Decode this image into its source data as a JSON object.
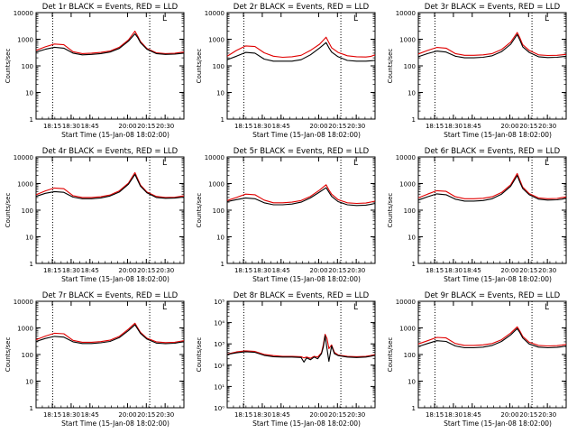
{
  "figure": {
    "legend_colors": {
      "events": "#000000",
      "lld": "#e00000"
    },
    "x_tick_labels": [
      "18:15",
      "18:30",
      "18:45",
      "20:00",
      "20:15",
      "20:30"
    ],
    "x_label": "Start Time (15-Jan-08 18:02:00)",
    "y_label": "Counts/sec",
    "corner_mark": "L"
  },
  "chart_data": [
    {
      "type": "line",
      "title": "Det 1r BLACK = Events, RED = LLD",
      "ylog": true,
      "ylim": [
        1,
        10000
      ],
      "ytick_style": "plain",
      "xlim": [
        0,
        160
      ],
      "x": [
        0,
        10,
        20,
        30,
        40,
        50,
        60,
        70,
        80,
        90,
        100,
        107,
        110,
        113,
        120,
        130,
        140,
        150,
        155,
        160
      ],
      "vlines_dotted": [
        18,
        123
      ],
      "series": [
        {
          "name": "Events",
          "color": "#000000",
          "values": [
            330,
            420,
            500,
            460,
            300,
            260,
            270,
            290,
            330,
            450,
            850,
            1600,
            1150,
            750,
            420,
            290,
            270,
            275,
            290,
            300
          ]
        },
        {
          "name": "LLD",
          "color": "#e00000",
          "values": [
            380,
            520,
            660,
            620,
            340,
            290,
            300,
            320,
            360,
            500,
            950,
            2000,
            1300,
            820,
            450,
            310,
            290,
            295,
            315,
            330
          ]
        }
      ]
    },
    {
      "type": "line",
      "title": "Det 2r BLACK = Events, RED = LLD",
      "ylog": true,
      "ylim": [
        1,
        10000
      ],
      "ytick_style": "plain",
      "xlim": [
        0,
        160
      ],
      "x": [
        0,
        10,
        20,
        30,
        40,
        50,
        60,
        70,
        80,
        90,
        100,
        107,
        110,
        113,
        120,
        130,
        140,
        150,
        155,
        160
      ],
      "vlines_dotted": [
        18,
        123
      ],
      "series": [
        {
          "name": "Events",
          "color": "#000000",
          "values": [
            170,
            230,
            320,
            300,
            180,
            150,
            150,
            150,
            170,
            260,
            470,
            750,
            480,
            330,
            220,
            160,
            150,
            150,
            155,
            160
          ]
        },
        {
          "name": "LLD",
          "color": "#e00000",
          "values": [
            230,
            380,
            560,
            530,
            310,
            230,
            210,
            220,
            250,
            380,
            650,
            1200,
            750,
            480,
            320,
            240,
            220,
            215,
            225,
            260
          ]
        }
      ]
    },
    {
      "type": "line",
      "title": "Det 3r BLACK = Events, RED = LLD",
      "ylog": true,
      "ylim": [
        1,
        10000
      ],
      "ytick_style": "plain",
      "xlim": [
        0,
        160
      ],
      "x": [
        0,
        10,
        20,
        30,
        40,
        50,
        60,
        70,
        80,
        90,
        100,
        107,
        110,
        113,
        120,
        130,
        140,
        150,
        155,
        160
      ],
      "vlines_dotted": [
        18,
        123
      ],
      "series": [
        {
          "name": "Events",
          "color": "#000000",
          "values": [
            220,
            290,
            360,
            330,
            230,
            200,
            200,
            210,
            240,
            340,
            650,
            1500,
            900,
            520,
            320,
            220,
            205,
            210,
            220,
            230
          ]
        },
        {
          "name": "LLD",
          "color": "#e00000",
          "values": [
            280,
            380,
            490,
            460,
            290,
            250,
            250,
            260,
            290,
            410,
            780,
            1800,
            1100,
            620,
            380,
            260,
            245,
            250,
            260,
            270
          ]
        }
      ]
    },
    {
      "type": "line",
      "title": "Det 4r BLACK = Events, RED = LLD",
      "ylog": true,
      "ylim": [
        1,
        10000
      ],
      "ytick_style": "plain",
      "xlim": [
        0,
        160
      ],
      "x": [
        0,
        10,
        20,
        30,
        40,
        50,
        60,
        70,
        80,
        90,
        100,
        107,
        110,
        113,
        120,
        130,
        140,
        150,
        155,
        160
      ],
      "vlines_dotted": [
        18,
        123
      ],
      "series": [
        {
          "name": "Events",
          "color": "#000000",
          "values": [
            330,
            430,
            500,
            470,
            310,
            270,
            270,
            290,
            340,
            480,
            950,
            2200,
            1300,
            800,
            450,
            300,
            280,
            285,
            300,
            310
          ]
        },
        {
          "name": "LLD",
          "color": "#e00000",
          "values": [
            380,
            530,
            680,
            640,
            350,
            300,
            300,
            320,
            370,
            530,
            1050,
            2600,
            1500,
            880,
            480,
            330,
            300,
            305,
            325,
            345
          ]
        }
      ]
    },
    {
      "type": "line",
      "title": "Det 5r BLACK = Events, RED = LLD",
      "ylog": true,
      "ylim": [
        1,
        10000
      ],
      "ytick_style": "plain",
      "xlim": [
        0,
        160
      ],
      "x": [
        0,
        10,
        20,
        30,
        40,
        50,
        60,
        70,
        80,
        90,
        100,
        107,
        110,
        113,
        120,
        130,
        140,
        150,
        155,
        160
      ],
      "vlines_dotted": [
        18,
        123
      ],
      "series": [
        {
          "name": "Events",
          "color": "#000000",
          "values": [
            210,
            250,
            290,
            270,
            190,
            160,
            160,
            170,
            200,
            290,
            480,
            700,
            480,
            330,
            210,
            160,
            150,
            155,
            165,
            180
          ]
        },
        {
          "name": "LLD",
          "color": "#e00000",
          "values": [
            230,
            300,
            400,
            380,
            240,
            190,
            190,
            200,
            230,
            330,
            570,
            900,
            580,
            400,
            250,
            190,
            180,
            185,
            200,
            220
          ]
        }
      ]
    },
    {
      "type": "line",
      "title": "Det 6r BLACK = Events, RED = LLD",
      "ylog": true,
      "ylim": [
        1,
        10000
      ],
      "ytick_style": "plain",
      "xlim": [
        0,
        160
      ],
      "x": [
        0,
        10,
        20,
        30,
        40,
        50,
        60,
        70,
        80,
        90,
        100,
        107,
        110,
        113,
        120,
        130,
        140,
        150,
        155,
        160
      ],
      "vlines_dotted": [
        18,
        123
      ],
      "series": [
        {
          "name": "Events",
          "color": "#000000",
          "values": [
            240,
            320,
            410,
            380,
            260,
            220,
            220,
            230,
            270,
            400,
            800,
            2000,
            1100,
            650,
            380,
            260,
            240,
            245,
            260,
            280
          ]
        },
        {
          "name": "LLD",
          "color": "#e00000",
          "values": [
            290,
            400,
            540,
            510,
            320,
            270,
            270,
            280,
            320,
            460,
            900,
            2400,
            1300,
            740,
            420,
            290,
            270,
            275,
            295,
            315
          ]
        }
      ]
    },
    {
      "type": "line",
      "title": "Det 7r BLACK = Events, RED = LLD",
      "ylog": true,
      "ylim": [
        1,
        10000
      ],
      "ytick_style": "plain",
      "xlim": [
        0,
        160
      ],
      "x": [
        0,
        10,
        20,
        30,
        40,
        50,
        60,
        70,
        80,
        90,
        100,
        107,
        110,
        113,
        120,
        130,
        140,
        150,
        155,
        160
      ],
      "vlines_dotted": [
        18,
        123
      ],
      "series": [
        {
          "name": "Events",
          "color": "#000000",
          "values": [
            310,
            400,
            480,
            450,
            300,
            260,
            260,
            275,
            310,
            430,
            800,
            1300,
            900,
            620,
            380,
            270,
            255,
            265,
            285,
            300
          ]
        },
        {
          "name": "LLD",
          "color": "#e00000",
          "values": [
            360,
            490,
            630,
            600,
            340,
            290,
            290,
            305,
            345,
            480,
            900,
            1500,
            1000,
            680,
            410,
            300,
            280,
            290,
            310,
            330
          ]
        }
      ]
    },
    {
      "type": "line",
      "title": "Det 8r BLACK = Events, RED = LLD",
      "ylog": true,
      "ylim": [
        1,
        100000
      ],
      "ytick_style": "power",
      "xlim": [
        0,
        160
      ],
      "x": [
        0,
        10,
        20,
        30,
        40,
        50,
        60,
        70,
        80,
        83,
        86,
        90,
        94,
        98,
        102,
        104,
        106,
        108,
        110,
        113,
        116,
        120,
        130,
        140,
        150,
        155,
        160
      ],
      "vlines_dotted": [
        18,
        123
      ],
      "series": [
        {
          "name": "Events",
          "color": "#000000",
          "values": [
            320,
            380,
            430,
            400,
            290,
            250,
            240,
            240,
            230,
            140,
            220,
            180,
            240,
            200,
            350,
            700,
            2400,
            600,
            150,
            800,
            350,
            280,
            240,
            230,
            240,
            260,
            290
          ]
        },
        {
          "name": "LLD",
          "color": "#e00000",
          "values": [
            330,
            420,
            470,
            440,
            320,
            280,
            260,
            260,
            250,
            220,
            240,
            210,
            260,
            240,
            380,
            900,
            2800,
            1800,
            600,
            900,
            400,
            300,
            260,
            250,
            260,
            280,
            310
          ]
        }
      ]
    },
    {
      "type": "line",
      "title": "Det 9r BLACK = Events, RED = LLD",
      "ylog": true,
      "ylim": [
        1,
        10000
      ],
      "ytick_style": "plain",
      "xlim": [
        0,
        160
      ],
      "x": [
        0,
        10,
        20,
        30,
        40,
        50,
        60,
        70,
        80,
        90,
        100,
        107,
        110,
        113,
        120,
        130,
        140,
        150,
        155,
        160
      ],
      "vlines_dotted": [
        18,
        123
      ],
      "series": [
        {
          "name": "Events",
          "color": "#000000",
          "values": [
            200,
            260,
            330,
            310,
            210,
            180,
            180,
            190,
            220,
            310,
            550,
            950,
            650,
            420,
            250,
            190,
            180,
            185,
            195,
            210
          ]
        },
        {
          "name": "LLD",
          "color": "#e00000",
          "values": [
            250,
            330,
            440,
            420,
            260,
            220,
            220,
            230,
            260,
            360,
            640,
            1100,
            750,
            480,
            290,
            220,
            210,
            215,
            225,
            240
          ]
        }
      ]
    }
  ]
}
